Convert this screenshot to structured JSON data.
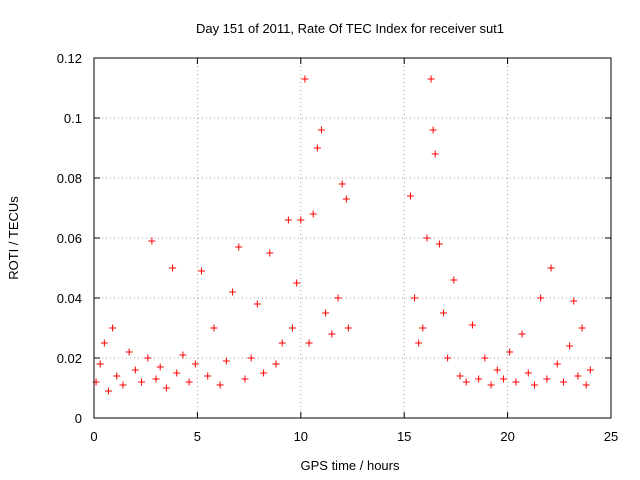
{
  "chart_data": {
    "type": "scatter",
    "title": "Day 151 of 2011, Rate Of TEC Index for receiver sut1",
    "xlabel": "GPS time / hours",
    "ylabel": "ROTI / TECUs",
    "xlim": [
      0,
      25
    ],
    "ylim": [
      0,
      0.12
    ],
    "xticks": [
      0,
      5,
      10,
      15,
      20,
      25
    ],
    "xtick_labels": [
      "0",
      "5",
      "10",
      "15",
      "20",
      "25"
    ],
    "yticks": [
      0,
      0.02,
      0.04,
      0.06,
      0.08,
      0.1,
      0.12
    ],
    "ytick_labels": [
      "0",
      "0.02",
      "0.04",
      "0.06",
      "0.08",
      "0.1",
      "0.12"
    ],
    "grid": true,
    "legend": "none",
    "marker": "+",
    "color": "#ff0000",
    "data_gap_hours": [
      12.4,
      15.1
    ],
    "series": [
      {
        "points": [
          [
            0.1,
            0.012
          ],
          [
            0.3,
            0.018
          ],
          [
            0.5,
            0.025
          ],
          [
            0.7,
            0.009
          ],
          [
            0.9,
            0.03
          ],
          [
            1.1,
            0.014
          ],
          [
            1.4,
            0.011
          ],
          [
            1.7,
            0.022
          ],
          [
            2.0,
            0.016
          ],
          [
            2.3,
            0.012
          ],
          [
            2.6,
            0.02
          ],
          [
            2.8,
            0.059
          ],
          [
            3.0,
            0.013
          ],
          [
            3.2,
            0.017
          ],
          [
            3.5,
            0.01
          ],
          [
            3.8,
            0.05
          ],
          [
            4.0,
            0.015
          ],
          [
            4.3,
            0.021
          ],
          [
            4.6,
            0.012
          ],
          [
            4.9,
            0.018
          ],
          [
            5.2,
            0.049
          ],
          [
            5.5,
            0.014
          ],
          [
            5.8,
            0.03
          ],
          [
            6.1,
            0.011
          ],
          [
            6.4,
            0.019
          ],
          [
            6.7,
            0.042
          ],
          [
            7.0,
            0.057
          ],
          [
            7.3,
            0.013
          ],
          [
            7.6,
            0.02
          ],
          [
            7.9,
            0.038
          ],
          [
            8.2,
            0.015
          ],
          [
            8.5,
            0.055
          ],
          [
            8.8,
            0.018
          ],
          [
            9.1,
            0.025
          ],
          [
            9.4,
            0.066
          ],
          [
            9.6,
            0.03
          ],
          [
            9.8,
            0.045
          ],
          [
            10.0,
            0.066
          ],
          [
            10.2,
            0.113
          ],
          [
            10.4,
            0.025
          ],
          [
            10.6,
            0.068
          ],
          [
            10.8,
            0.09
          ],
          [
            11.0,
            0.096
          ],
          [
            11.2,
            0.035
          ],
          [
            11.5,
            0.028
          ],
          [
            11.8,
            0.04
          ],
          [
            12.0,
            0.078
          ],
          [
            12.2,
            0.073
          ],
          [
            12.3,
            0.03
          ],
          [
            15.3,
            0.074
          ],
          [
            15.5,
            0.04
          ],
          [
            15.7,
            0.025
          ],
          [
            15.9,
            0.03
          ],
          [
            16.1,
            0.06
          ],
          [
            16.3,
            0.113
          ],
          [
            16.4,
            0.096
          ],
          [
            16.5,
            0.088
          ],
          [
            16.7,
            0.058
          ],
          [
            16.9,
            0.035
          ],
          [
            17.1,
            0.02
          ],
          [
            17.4,
            0.046
          ],
          [
            17.7,
            0.014
          ],
          [
            18.0,
            0.012
          ],
          [
            18.3,
            0.031
          ],
          [
            18.6,
            0.013
          ],
          [
            18.9,
            0.02
          ],
          [
            19.2,
            0.011
          ],
          [
            19.5,
            0.016
          ],
          [
            19.8,
            0.013
          ],
          [
            20.1,
            0.022
          ],
          [
            20.4,
            0.012
          ],
          [
            20.7,
            0.028
          ],
          [
            21.0,
            0.015
          ],
          [
            21.3,
            0.011
          ],
          [
            21.6,
            0.04
          ],
          [
            21.9,
            0.013
          ],
          [
            22.1,
            0.05
          ],
          [
            22.4,
            0.018
          ],
          [
            22.7,
            0.012
          ],
          [
            23.0,
            0.024
          ],
          [
            23.2,
            0.039
          ],
          [
            23.4,
            0.014
          ],
          [
            23.6,
            0.03
          ],
          [
            23.8,
            0.011
          ],
          [
            24.0,
            0.016
          ]
        ]
      }
    ]
  }
}
